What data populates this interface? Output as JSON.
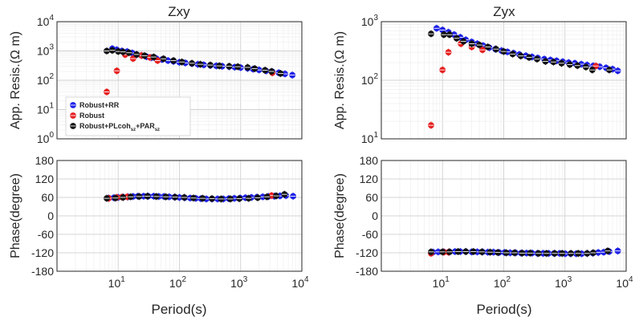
{
  "figure": {
    "titles": [
      "Zxy",
      "Zyx"
    ],
    "xlabel": "Period(s)",
    "rho_ylabel": "App. Resis.(Ω m)",
    "phase_ylabel": "Phase(degree)"
  },
  "axes": {
    "x_ticks": [
      {
        "base": "10",
        "exp": "1",
        "value": 10
      },
      {
        "base": "10",
        "exp": "2",
        "value": 100
      },
      {
        "base": "10",
        "exp": "3",
        "value": 1000
      },
      {
        "base": "10",
        "exp": "4",
        "value": 10000
      }
    ],
    "rho_left_ticks": [
      {
        "base": "10",
        "exp": "0",
        "value": 1
      },
      {
        "base": "10",
        "exp": "1",
        "value": 10
      },
      {
        "base": "10",
        "exp": "2",
        "value": 100
      },
      {
        "base": "10",
        "exp": "3",
        "value": 1000
      },
      {
        "base": "10",
        "exp": "4",
        "value": 10000
      }
    ],
    "rho_right_ticks": [
      {
        "base": "10",
        "exp": "1",
        "value": 10
      },
      {
        "base": "10",
        "exp": "2",
        "value": 100
      },
      {
        "base": "10",
        "exp": "3",
        "value": 1000
      }
    ],
    "phase_ticks": [
      "180",
      "120",
      "60",
      "0",
      "-60",
      "-120",
      "-180"
    ]
  },
  "legend": {
    "rr": "Robust+RR",
    "robust": "Robust",
    "pl_main": "Robust+PLcoh",
    "pl_sub1": "sz",
    "pl_mid": "+PAR",
    "pl_sub2": "sz"
  },
  "chart_data": [
    {
      "type": "scatter",
      "title": "Zxy",
      "panel": "apparent resistivity",
      "xlabel": "Period(s)",
      "ylabel": "App. Resis.(Ω m)",
      "xscale": "log",
      "yscale": "log",
      "xlim": [
        1,
        10000
      ],
      "ylim": [
        1,
        10000
      ],
      "grid": true,
      "legend_position": "lower-left",
      "series": [
        {
          "name": "Robust+RR",
          "color": "#1f22e6",
          "x": [
            8,
            9.5,
            11.5,
            14,
            17,
            20,
            24,
            29,
            35,
            42,
            52,
            65,
            80,
            100,
            125,
            160,
            200,
            250,
            320,
            400,
            500,
            650,
            800,
            1000,
            1300,
            1600,
            2000,
            2600,
            3300,
            4200,
            5300,
            7000
          ],
          "y": [
            1200,
            1100,
            1000,
            950,
            850,
            750,
            700,
            640,
            590,
            550,
            510,
            470,
            440,
            410,
            390,
            370,
            350,
            335,
            320,
            310,
            300,
            290,
            280,
            270,
            255,
            240,
            225,
            210,
            195,
            180,
            165,
            150
          ]
        },
        {
          "name": "Robust",
          "color": "#e62020",
          "x": [
            6.5,
            9.5,
            13,
            17.5,
            24,
            33,
            44,
            3300
          ],
          "y": [
            40,
            210,
            750,
            550,
            700,
            600,
            470,
            180
          ]
        },
        {
          "name": "Robust+PLcoh_sz+PAR_sz",
          "color": "#111111",
          "x": [
            6.5,
            8,
            10,
            12,
            15,
            20,
            27,
            38,
            55,
            80,
            110,
            160,
            220,
            320,
            450,
            650,
            900,
            1300,
            1700,
            2500,
            3200,
            4500
          ],
          "y": [
            1000,
            1050,
            960,
            930,
            870,
            760,
            690,
            620,
            540,
            470,
            420,
            380,
            350,
            330,
            310,
            300,
            290,
            275,
            250,
            220,
            200,
            170
          ]
        }
      ]
    },
    {
      "type": "scatter",
      "title": "Zyx",
      "panel": "apparent resistivity",
      "xlabel": "Period(s)",
      "ylabel": "App. Resis.(Ω m)",
      "xscale": "log",
      "yscale": "log",
      "xlim": [
        1,
        10000
      ],
      "ylim": [
        10,
        1000
      ],
      "grid": true,
      "series": [
        {
          "name": "Robust+RR",
          "color": "#1f22e6",
          "x": [
            8,
            10,
            12.5,
            15.5,
            19.5,
            24,
            30,
            37,
            46,
            58,
            73,
            92,
            115,
            145,
            180,
            230,
            290,
            360,
            460,
            580,
            730,
            920,
            1150,
            1450,
            1850,
            2300,
            2900,
            3700,
            4700,
            6000,
            7300
          ],
          "y": [
            770,
            720,
            660,
            600,
            540,
            490,
            450,
            420,
            390,
            360,
            340,
            320,
            305,
            290,
            275,
            262,
            250,
            240,
            230,
            222,
            215,
            207,
            200,
            195,
            188,
            182,
            176,
            170,
            163,
            155,
            145
          ]
        },
        {
          "name": "Robust",
          "color": "#e62020",
          "x": [
            6.5,
            10,
            12.5,
            20,
            30,
            45,
            3200
          ],
          "y": [
            17,
            150,
            300,
            420,
            370,
            330,
            175
          ]
        },
        {
          "name": "Robust+PLcoh_sz+PAR_sz",
          "color": "#111111",
          "x": [
            6.5,
            10.5,
            13,
            17,
            22,
            30,
            40,
            55,
            75,
            100,
            140,
            190,
            260,
            350,
            480,
            650,
            880,
            1200,
            1600,
            2200,
            2800,
            5300
          ],
          "y": [
            620,
            600,
            600,
            520,
            460,
            420,
            400,
            370,
            340,
            310,
            280,
            260,
            245,
            230,
            210,
            205,
            195,
            185,
            178,
            168,
            150,
            150
          ]
        }
      ]
    },
    {
      "type": "scatter",
      "title": "Zxy",
      "panel": "phase",
      "xlabel": "Period(s)",
      "ylabel": "Phase(degree)",
      "xscale": "log",
      "xlim": [
        1,
        10000
      ],
      "ylim": [
        -180,
        180
      ],
      "grid": true,
      "series": [
        {
          "name": "Robust+RR",
          "color": "#1f22e6",
          "x": [
            7,
            8.5,
            10,
            12,
            14.5,
            17.5,
            21,
            26,
            31,
            38,
            46,
            56,
            68,
            83,
            100,
            122,
            150,
            185,
            225,
            275,
            340,
            420,
            520,
            640,
            790,
            980,
            1200,
            1500,
            1850,
            2300,
            2850,
            3550,
            4400,
            5500,
            7200
          ],
          "y": [
            58,
            59,
            60,
            61,
            62,
            63,
            64,
            64,
            64,
            64,
            63,
            63,
            62,
            61,
            60,
            59,
            58,
            57,
            56,
            55,
            55,
            55,
            55,
            56,
            57,
            58,
            59,
            60,
            61,
            62,
            63,
            64,
            65,
            66,
            64
          ]
        },
        {
          "name": "Robust",
          "color": "#e62020",
          "x": [
            7,
            9.5,
            11.5,
            14,
            3200
          ],
          "y": [
            57,
            60,
            61,
            62,
            66
          ]
        },
        {
          "name": "Robust+PLcoh_sz+PAR_sz",
          "color": "#111111",
          "x": [
            6.5,
            9,
            12,
            16,
            22,
            30,
            42,
            60,
            85,
            120,
            170,
            240,
            340,
            480,
            680,
            950,
            1350,
            1900,
            2700,
            3800,
            5200
          ],
          "y": [
            57,
            58,
            60,
            62,
            63,
            64,
            63,
            62,
            61,
            60,
            58,
            57,
            56,
            55,
            55,
            56,
            57,
            59,
            62,
            65,
            70
          ]
        }
      ]
    },
    {
      "type": "scatter",
      "title": "Zyx",
      "panel": "phase",
      "xlabel": "Period(s)",
      "ylabel": "Phase(degree)",
      "xscale": "log",
      "xlim": [
        1,
        10000
      ],
      "ylim": [
        -180,
        180
      ],
      "grid": true,
      "series": [
        {
          "name": "Robust+RR",
          "color": "#1f22e6",
          "x": [
            7,
            8.5,
            10.5,
            13,
            16,
            19.5,
            24,
            30,
            37,
            45,
            55,
            68,
            84,
            103,
            127,
            156,
            192,
            236,
            290,
            357,
            440,
            540,
            665,
            820,
            1010,
            1240,
            1530,
            1880,
            2310,
            2850,
            3500,
            4300,
            5300,
            7300
          ],
          "y": [
            -118,
            -117,
            -117,
            -117,
            -116,
            -116,
            -116,
            -117,
            -117,
            -117,
            -118,
            -118,
            -119,
            -119,
            -120,
            -120,
            -121,
            -121,
            -121,
            -122,
            -122,
            -122,
            -122,
            -122,
            -123,
            -123,
            -123,
            -123,
            -122,
            -121,
            -119,
            -118,
            -116,
            -114
          ]
        },
        {
          "name": "Robust",
          "color": "#e62020",
          "x": [
            6.5,
            10.5,
            12.5
          ],
          "y": [
            -122,
            -118,
            -118
          ]
        },
        {
          "name": "Robust+PLcoh_sz+PAR_sz",
          "color": "#111111",
          "x": [
            6.5,
            10,
            13,
            18,
            24,
            32,
            44,
            60,
            80,
            110,
            150,
            200,
            270,
            370,
            500,
            680,
            900,
            1250,
            1650,
            2300,
            2900,
            5000
          ],
          "y": [
            -117,
            -117,
            -117,
            -116,
            -116,
            -116,
            -117,
            -118,
            -119,
            -120,
            -120,
            -121,
            -121,
            -122,
            -122,
            -122,
            -122,
            -122,
            -122,
            -122,
            -120,
            -114
          ]
        }
      ]
    }
  ]
}
